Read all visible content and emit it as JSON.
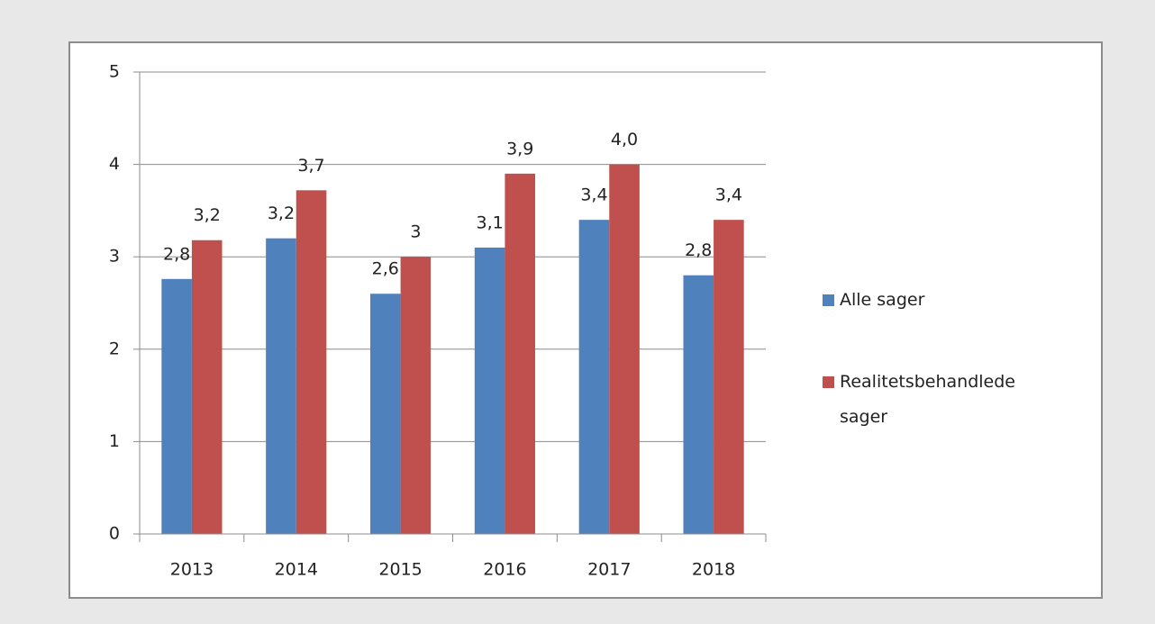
{
  "chart_data": {
    "type": "bar",
    "categories": [
      "2013",
      "2014",
      "2015",
      "2016",
      "2017",
      "2018"
    ],
    "series": [
      {
        "name": "Alle sager",
        "color": "#4f81bd",
        "values": [
          2.76,
          3.2,
          2.6,
          3.1,
          3.4,
          2.8
        ],
        "value_labels": [
          "2,8",
          "3,2",
          "2,6",
          "3,1",
          "3,4",
          "2,8"
        ]
      },
      {
        "name": "Realitetsbehandlede sager",
        "color": "#c0504d",
        "values": [
          3.18,
          3.72,
          3.0,
          3.9,
          4.0,
          3.4
        ],
        "value_labels": [
          "3,2",
          "3,7",
          "3",
          "3,9",
          "4,0",
          "3,4"
        ]
      }
    ],
    "ylim": [
      0,
      5
    ],
    "yticks": [
      0,
      1,
      2,
      3,
      4,
      5
    ],
    "grid": true,
    "legend": "right"
  }
}
